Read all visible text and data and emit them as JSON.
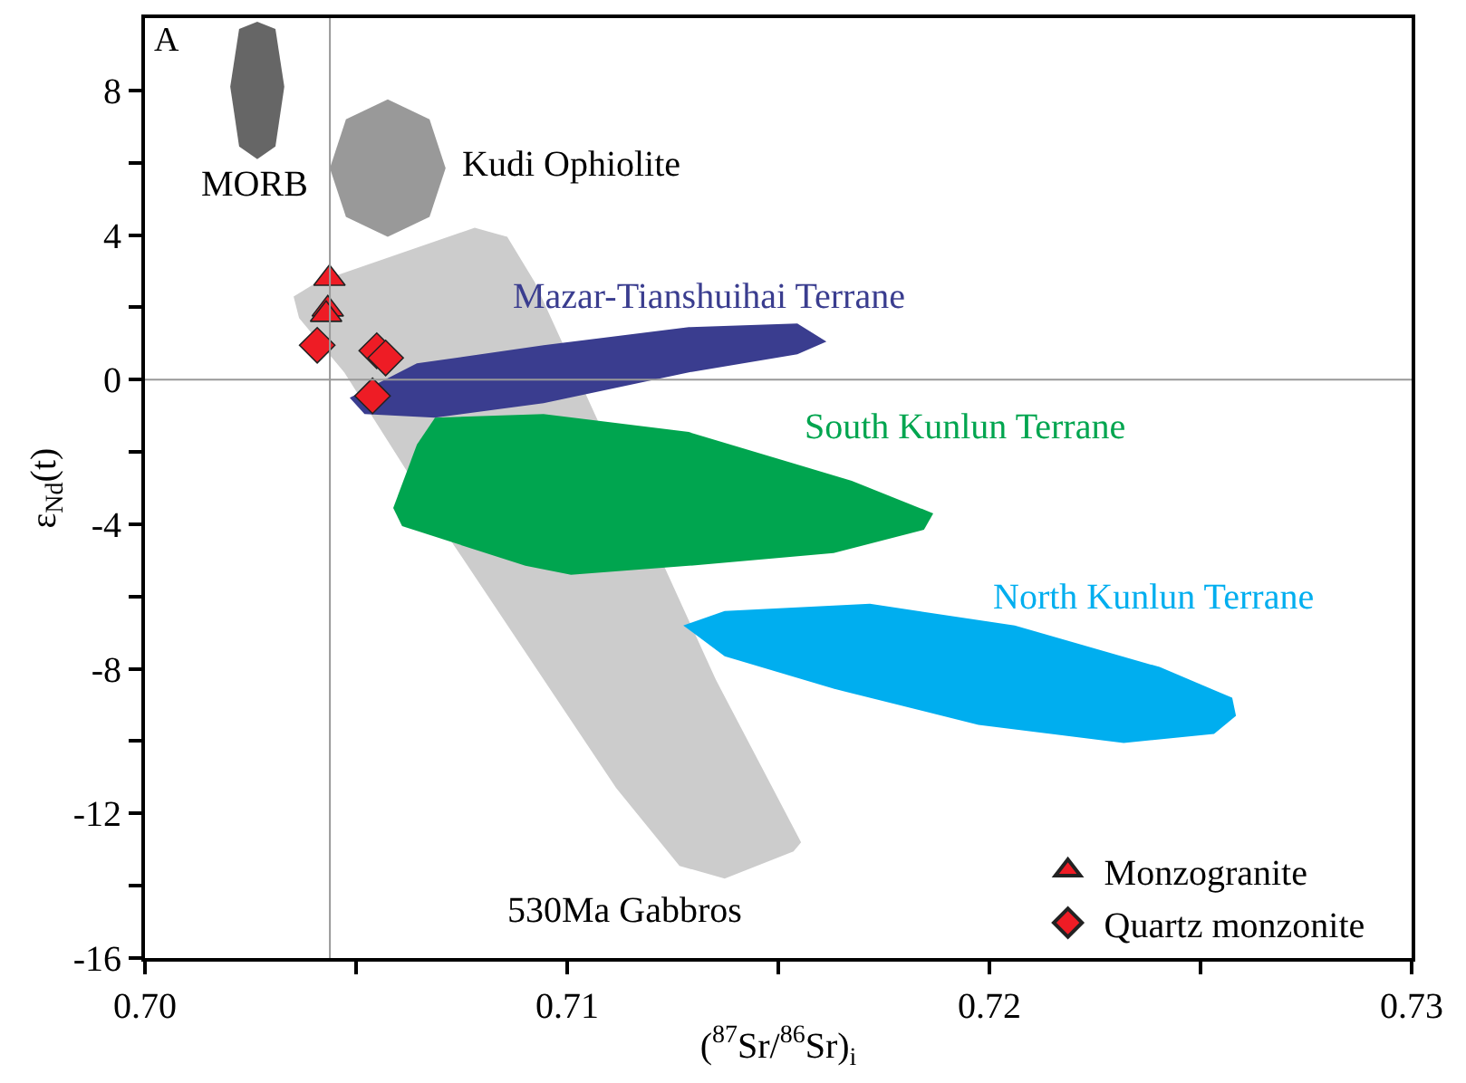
{
  "chart_data": {
    "type": "scatter",
    "xlabel": "($^{87}$Sr/$^{86}$Sr)$_{i}$",
    "ylabel": "ε$_{Nd}$(t)",
    "xlim": [
      0.7,
      0.73
    ],
    "ylim": [
      -16,
      10
    ],
    "xticks": [
      {
        "value": 0.7,
        "label": "0.70"
      },
      {
        "value": 0.705,
        "label": null
      },
      {
        "value": 0.71,
        "label": "0.71"
      },
      {
        "value": 0.715,
        "label": null
      },
      {
        "value": 0.72,
        "label": "0.72"
      },
      {
        "value": 0.725,
        "label": null
      },
      {
        "value": 0.73,
        "label": "0.73"
      }
    ],
    "yticks": [
      -16,
      {
        "value": -14,
        "label": null
      },
      -12,
      {
        "value": -10,
        "label": null
      },
      -8,
      {
        "value": -6,
        "label": null
      },
      -4,
      {
        "value": -2,
        "label": null
      },
      0,
      {
        "value": 2,
        "label": null
      },
      4,
      {
        "value": 6,
        "label": null
      },
      8
    ],
    "legend": "bottom right",
    "ref_lines": [
      {
        "axis": "x",
        "value": 0.70438,
        "color": "#999999"
      },
      {
        "axis": "y",
        "value": 0,
        "color": "#999999"
      }
    ],
    "series": [
      {
        "type": "area",
        "color": "#666666",
        "x": [
          0.70266,
          0.70309,
          0.7033,
          0.70309,
          0.70266,
          0.70223,
          0.70202,
          0.70223
        ],
        "values": [
          9.9,
          9.7,
          8.1,
          6.45,
          6.1,
          6.45,
          8.1,
          9.7
        ]
      },
      {
        "type": "area",
        "color": "#999999",
        "x": [
          0.70575,
          0.70674,
          0.70712,
          0.70674,
          0.70575,
          0.70476,
          0.70438,
          0.70476
        ],
        "values": [
          7.75,
          7.2,
          5.85,
          4.5,
          3.95,
          4.5,
          5.85,
          7.2
        ]
      },
      {
        "type": "area",
        "color": "#cccccc",
        "x": [
          0.70352,
          0.70408,
          0.70781,
          0.70858,
          0.70923,
          0.71352,
          0.71554,
          0.71536,
          0.71373,
          0.71266,
          0.71116,
          0.7073,
          0.70472,
          0.70365
        ],
        "values": [
          2.3,
          2.7,
          4.2,
          3.95,
          2.7,
          -8.3,
          -12.8,
          -13.05,
          -13.8,
          -13.45,
          -11.3,
          -4.55,
          0.2,
          1.7
        ]
      },
      {
        "type": "area",
        "name": "Mazar-Tianshuihai Terrane",
        "color": "#3a3d8f",
        "x": [
          0.70485,
          0.70644,
          0.70944,
          0.71288,
          0.71545,
          0.71614,
          0.71545,
          0.71288,
          0.70944,
          0.70687,
          0.7052
        ],
        "values": [
          -0.5,
          0.45,
          0.95,
          1.45,
          1.55,
          1.05,
          0.7,
          0.2,
          -0.65,
          -1.05,
          -0.95
        ]
      },
      {
        "type": "area",
        "name": "South Kunlun Terrane",
        "color": "#00a54f",
        "x": [
          0.70687,
          0.70944,
          0.71288,
          0.71674,
          0.71867,
          0.71845,
          0.71631,
          0.71288,
          0.71009,
          0.70901,
          0.70609,
          0.70588,
          0.70644
        ],
        "values": [
          -1.05,
          -0.95,
          -1.45,
          -2.8,
          -3.7,
          -4.15,
          -4.8,
          -5.15,
          -5.4,
          -5.15,
          -4.05,
          -3.55,
          -1.8
        ]
      },
      {
        "type": "area",
        "name": "North Kunlun Terrane",
        "color": "#00aeef",
        "x": [
          0.71275,
          0.71373,
          0.71717,
          0.7206,
          0.72403,
          0.72575,
          0.72584,
          0.72532,
          0.72318,
          0.71974,
          0.71631,
          0.71373
        ],
        "values": [
          -6.8,
          -6.4,
          -6.2,
          -6.8,
          -7.95,
          -8.8,
          -9.3,
          -9.8,
          -10.05,
          -9.55,
          -8.55,
          -7.65
        ]
      },
      {
        "name": "Monzogranite",
        "marker": "triangle",
        "color": "#ee1c25",
        "x": [
          0.70437,
          0.70433,
          0.70429
        ],
        "values": [
          2.8,
          1.95,
          1.8
        ]
      },
      {
        "name": "Quartz monzonite",
        "marker": "diamond",
        "color": "#ee1c25",
        "x": [
          0.70408,
          0.70549,
          0.7057,
          0.70539
        ],
        "values": [
          0.95,
          0.8,
          0.6,
          -0.45
        ]
      }
    ],
    "annotations": [
      "A",
      "MORB",
      "Kudi Ophiolite",
      "530Ma Gabbros"
    ]
  }
}
